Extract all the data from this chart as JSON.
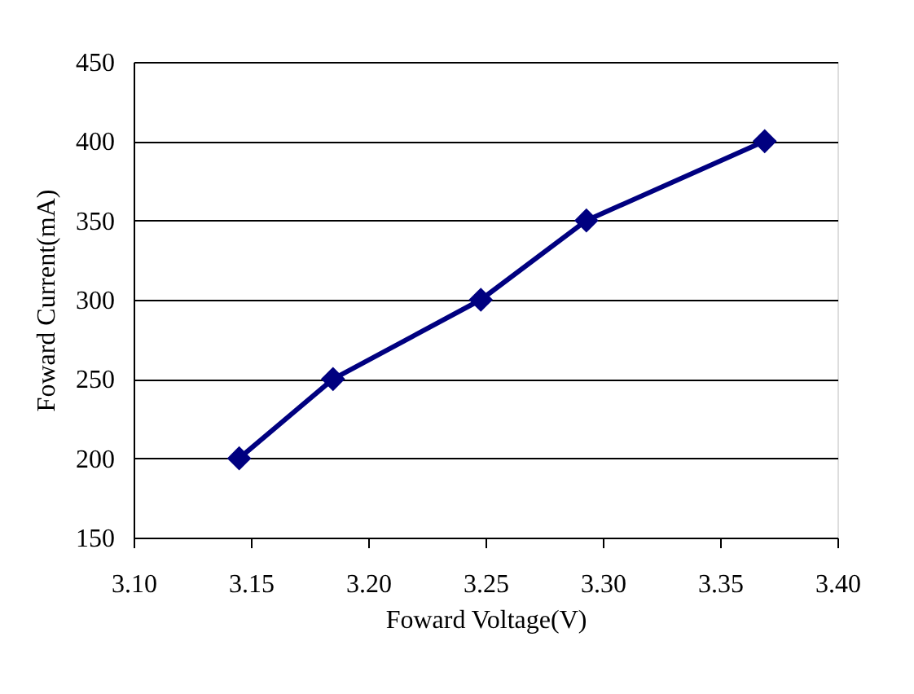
{
  "chart_data": {
    "type": "line",
    "xlabel": "Foward Voltage(V)",
    "ylabel": "Foward Current(mA)",
    "x": [
      3.145,
      3.185,
      3.248,
      3.293,
      3.369
    ],
    "series": [
      {
        "color": "#000080",
        "values": [
          200,
          250,
          300,
          350,
          400
        ]
      }
    ],
    "xlim": [
      3.1,
      3.4
    ],
    "xticks": [
      {
        "value": 3.1,
        "label": "3.10"
      },
      {
        "value": 3.15,
        "label": "3.15"
      },
      {
        "value": 3.2,
        "label": "3.20"
      },
      {
        "value": 3.25,
        "label": "3.25"
      },
      {
        "value": 3.3,
        "label": "3.30"
      },
      {
        "value": 3.35,
        "label": "3.35"
      },
      {
        "value": 3.4,
        "label": "3.40"
      }
    ],
    "ylim": [
      150,
      450
    ],
    "yticks": [
      150,
      200,
      250,
      300,
      350,
      400,
      450
    ],
    "grid": "y",
    "marker": "diamond",
    "line_style": "solid"
  }
}
